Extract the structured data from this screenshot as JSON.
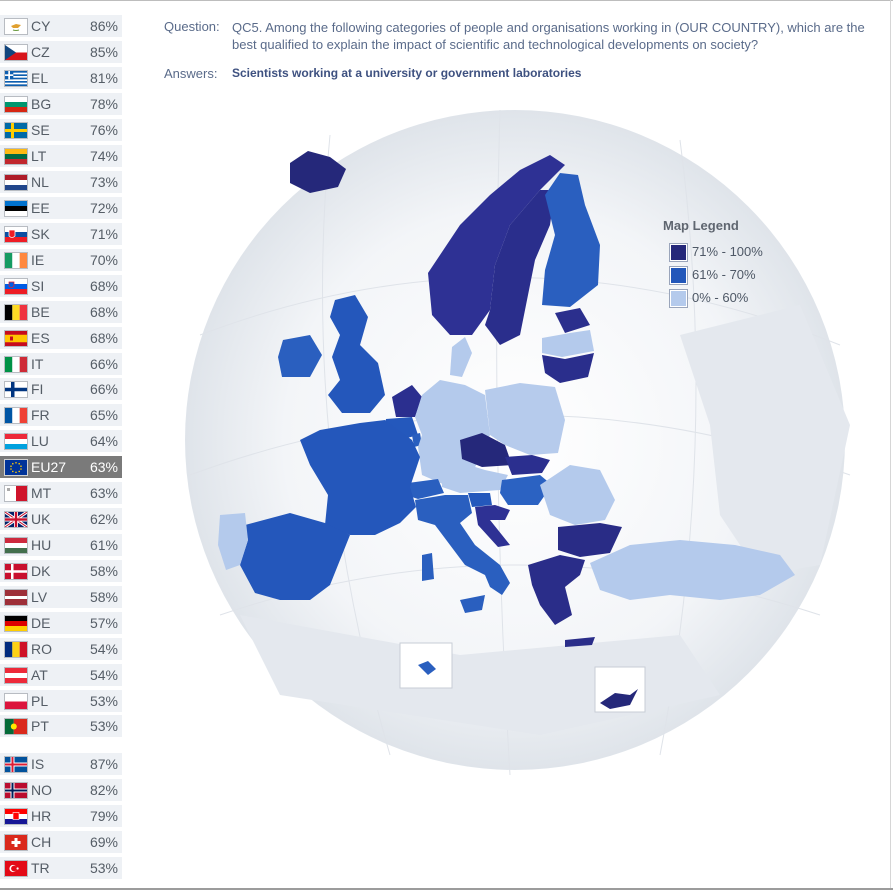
{
  "header": {
    "question_label": "Question:",
    "question_text": "QC5. Among the following categories of people and organisations working in (OUR COUNTRY), which are the best qualified to explain the impact of scientific and technological developments on society?",
    "answers_label": "Answers:",
    "answers_text": "Scientists working at a university or government laboratories"
  },
  "legend": {
    "title": "Map Legend",
    "items": [
      {
        "label": "71% - 100%",
        "color": "#25287a"
      },
      {
        "label": "61% - 70%",
        "color": "#2257ba"
      },
      {
        "label": "0% - 60%",
        "color": "#b4caec"
      }
    ]
  },
  "countries": [
    {
      "code": "CY",
      "value": "86%"
    },
    {
      "code": "CZ",
      "value": "85%"
    },
    {
      "code": "EL",
      "value": "81%"
    },
    {
      "code": "BG",
      "value": "78%"
    },
    {
      "code": "SE",
      "value": "76%"
    },
    {
      "code": "LT",
      "value": "74%"
    },
    {
      "code": "NL",
      "value": "73%"
    },
    {
      "code": "EE",
      "value": "72%"
    },
    {
      "code": "SK",
      "value": "71%"
    },
    {
      "code": "IE",
      "value": "70%"
    },
    {
      "code": "SI",
      "value": "68%"
    },
    {
      "code": "BE",
      "value": "68%"
    },
    {
      "code": "ES",
      "value": "68%"
    },
    {
      "code": "IT",
      "value": "66%"
    },
    {
      "code": "FI",
      "value": "66%"
    },
    {
      "code": "FR",
      "value": "65%"
    },
    {
      "code": "LU",
      "value": "64%"
    },
    {
      "code": "EU27",
      "value": "63%"
    },
    {
      "code": "MT",
      "value": "63%"
    },
    {
      "code": "UK",
      "value": "62%"
    },
    {
      "code": "HU",
      "value": "61%"
    },
    {
      "code": "DK",
      "value": "58%"
    },
    {
      "code": "LV",
      "value": "58%"
    },
    {
      "code": "DE",
      "value": "57%"
    },
    {
      "code": "RO",
      "value": "54%"
    },
    {
      "code": "AT",
      "value": "54%"
    },
    {
      "code": "PL",
      "value": "53%"
    },
    {
      "code": "PT",
      "value": "53%"
    }
  ],
  "other_countries": [
    {
      "code": "IS",
      "value": "87%"
    },
    {
      "code": "NO",
      "value": "82%"
    },
    {
      "code": "HR",
      "value": "79%"
    },
    {
      "code": "CH",
      "value": "69%"
    },
    {
      "code": "TR",
      "value": "53%"
    }
  ]
}
